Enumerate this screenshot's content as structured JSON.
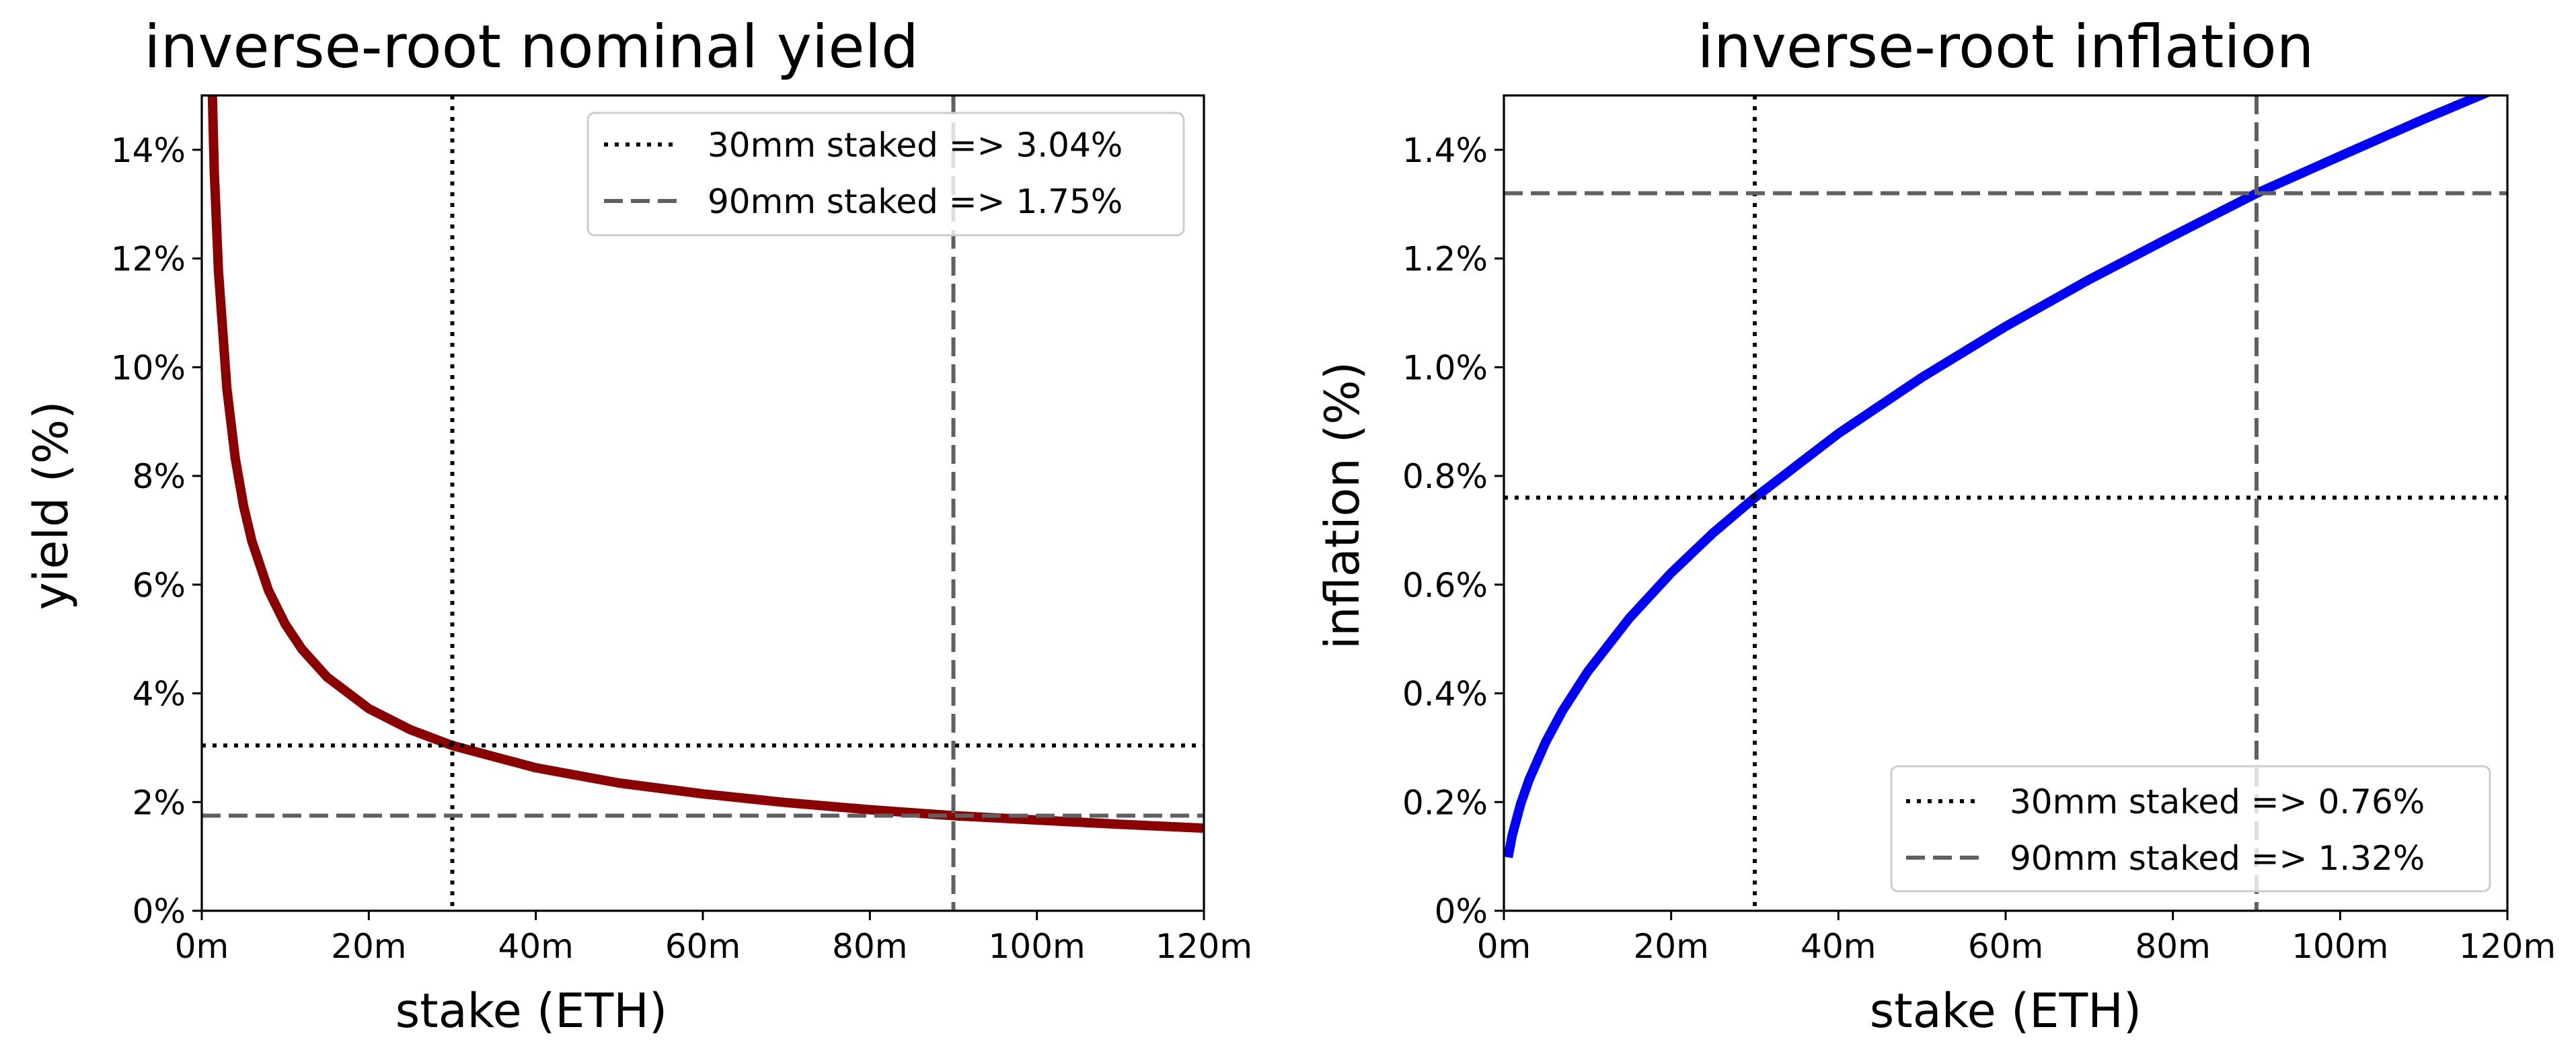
{
  "chart_data": [
    {
      "type": "line",
      "title": "inverse-root nominal yield",
      "xlabel": "stake (ETH)",
      "ylabel": "yield (%)",
      "xlim": [
        0,
        120
      ],
      "ylim": [
        0,
        15
      ],
      "x_ticks": [
        0,
        20,
        40,
        60,
        80,
        100,
        120
      ],
      "x_tick_labels": [
        "0m",
        "20m",
        "40m",
        "60m",
        "80m",
        "100m",
        "120m"
      ],
      "y_ticks": [
        0,
        2,
        4,
        6,
        8,
        10,
        12,
        14
      ],
      "y_tick_labels": [
        "0%",
        "2%",
        "4%",
        "6%",
        "8%",
        "10%",
        "12%",
        "14%"
      ],
      "grid": false,
      "legend_position": "top-right",
      "series": [
        {
          "color": "#8b0000",
          "x": [
            1,
            1.5,
            2,
            3,
            4,
            5,
            6,
            8,
            10,
            12,
            15,
            20,
            25,
            30,
            40,
            50,
            60,
            70,
            80,
            90,
            100,
            110,
            120
          ],
          "y": [
            16.65,
            13.59,
            11.77,
            9.61,
            8.33,
            7.45,
            6.8,
            5.89,
            5.27,
            4.81,
            4.3,
            3.72,
            3.33,
            3.04,
            2.63,
            2.35,
            2.15,
            1.99,
            1.86,
            1.75,
            1.67,
            1.59,
            1.52
          ]
        }
      ],
      "reference_lines": [
        {
          "label": "30mm staked => 3.04%",
          "x": 30,
          "y": 3.04,
          "style": "dotted",
          "color": "#000000"
        },
        {
          "label": "90mm staked => 1.75%",
          "x": 90,
          "y": 1.75,
          "style": "dashed",
          "color": "#606060"
        }
      ]
    },
    {
      "type": "line",
      "title": "inverse-root inflation",
      "xlabel": "stake (ETH)",
      "ylabel": "inflation (%)",
      "xlim": [
        0,
        120
      ],
      "ylim": [
        0,
        1.5
      ],
      "x_ticks": [
        0,
        20,
        40,
        60,
        80,
        100,
        120
      ],
      "x_tick_labels": [
        "0m",
        "20m",
        "40m",
        "60m",
        "80m",
        "100m",
        "120m"
      ],
      "y_ticks": [
        0,
        0.2,
        0.4,
        0.6,
        0.8,
        1.0,
        1.2,
        1.4
      ],
      "y_tick_labels": [
        "0%",
        "0.2%",
        "0.4%",
        "0.6%",
        "0.8%",
        "1.0%",
        "1.2%",
        "1.4%"
      ],
      "grid": false,
      "legend_position": "bottom-right",
      "series": [
        {
          "color": "#0000ff",
          "x": [
            0.5,
            1,
            2,
            3,
            5,
            7,
            10,
            15,
            20,
            25,
            30,
            40,
            50,
            60,
            70,
            80,
            90,
            100,
            110,
            120
          ],
          "y": [
            0.0983,
            0.139,
            0.1966,
            0.2408,
            0.3108,
            0.3678,
            0.4395,
            0.5383,
            0.6216,
            0.6949,
            0.76,
            0.878,
            0.9815,
            1.0751,
            1.1613,
            1.2415,
            1.32,
            1.3885,
            1.4563,
            1.521
          ]
        }
      ],
      "reference_lines": [
        {
          "label": "30mm staked => 0.76%",
          "x": 30,
          "y": 0.76,
          "style": "dotted",
          "color": "#000000"
        },
        {
          "label": "90mm staked => 1.32%",
          "x": 90,
          "y": 1.32,
          "style": "dashed",
          "color": "#606060"
        }
      ]
    }
  ]
}
